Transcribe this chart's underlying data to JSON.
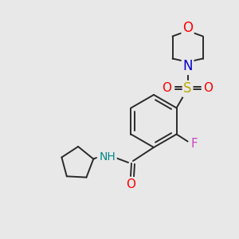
{
  "background_color": "#e8e8e8",
  "bond_color": "#2a2a2a",
  "atom_colors": {
    "O": "#ff0000",
    "N": "#0000cc",
    "S": "#bbaa00",
    "F": "#cc44bb",
    "NH": "#008888",
    "C": "#2a2a2a"
  },
  "figsize": [
    3.0,
    3.0
  ],
  "dpi": 100
}
